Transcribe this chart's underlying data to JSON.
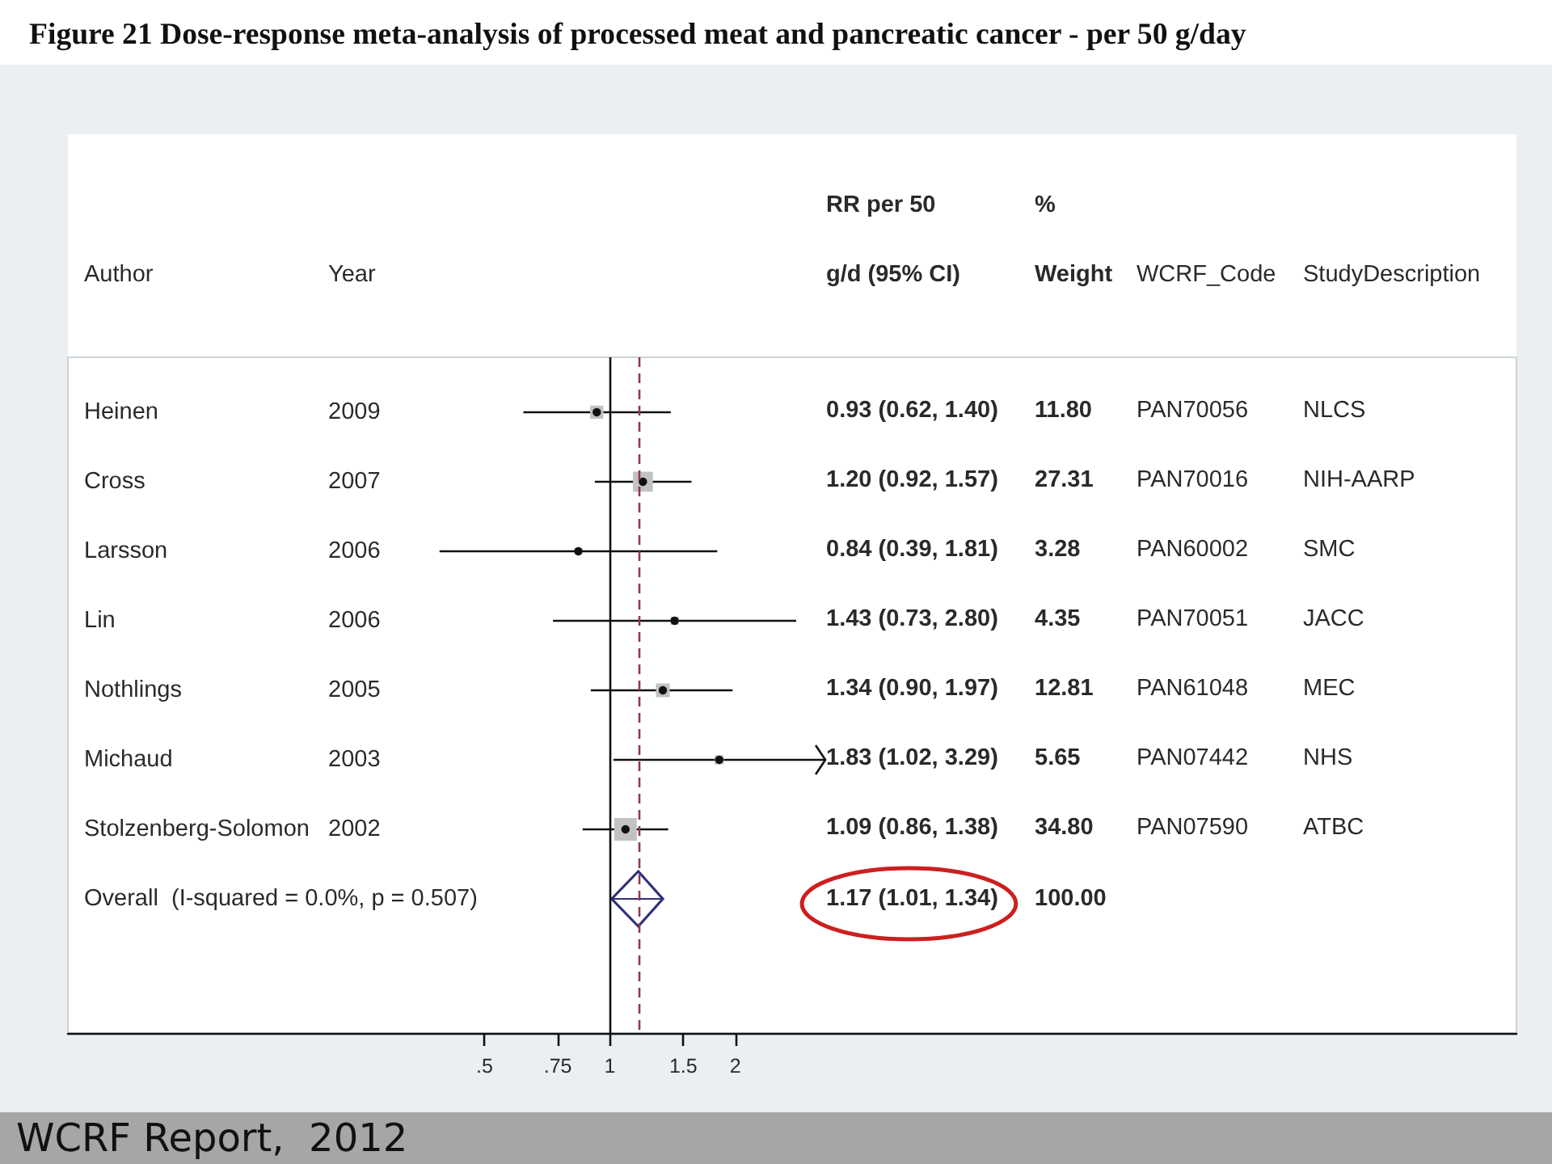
{
  "chart_data": [
    {
      "type": "scatter",
      "orientation": "horizontal",
      "title": "Figure 21 Dose-response meta-analysis of processed meat and pancreatic cancer - per 50 g/day",
      "ylabel": "Author",
      "y2label": "Year",
      "categories": [
        "Heinen",
        "Cross",
        "Larsson",
        "Lin",
        "Nothlings",
        "Michaud",
        "Stolzenberg-Solomon",
        "Overall  (I-squared = 0.0%, p = 0.507)"
      ],
      "y2_categories": [
        "2009",
        "2007",
        "2006",
        "2006",
        "2005",
        "2003",
        "2002",
        null
      ],
      "series": [
        {
          "type": "bubble",
          "marker": "square",
          "color": "#c2c2c2",
          "values": [
            0.93,
            1.2,
            0.84,
            1.43,
            1.34,
            1.83,
            1.09,
            null
          ],
          "errors": [
            [
              0.62,
              1.4
            ],
            [
              0.92,
              1.57
            ],
            [
              0.39,
              1.81
            ],
            [
              0.73,
              2.8
            ],
            [
              0.9,
              1.97
            ],
            [
              1.02,
              3.29
            ],
            [
              0.86,
              1.38
            ],
            null
          ],
          "sizes": [
            0.34,
            0.78,
            0.09,
            0.13,
            0.37,
            0.16,
            1,
            null
          ]
        },
        {
          "marker": "diamond",
          "color": "#2f2f7a",
          "values": [
            null,
            null,
            null,
            null,
            null,
            null,
            null,
            1.17
          ],
          "errors": [
            null,
            null,
            null,
            null,
            null,
            null,
            null,
            [
              1.01,
              1.34
            ]
          ]
        }
      ],
      "xlim": [
        0.05,
        150
      ],
      "xticks": [
        {
          "value": 0.5,
          "label": ".5"
        },
        {
          "value": 0.75,
          "label": ".75"
        },
        1,
        1.5,
        2
      ],
      "log": "x",
      "ref_lines": [
        {
          "axis": "x",
          "value": 1,
          "color": "#111111",
          "line_style": "solid"
        },
        {
          "axis": "x",
          "value": 1.17,
          "color": "#8e3a4e",
          "line_style": "dashed"
        }
      ],
      "annotations": [
        "WCRF Report,  2012"
      ]
    },
    {
      "type": "other",
      "categories": [
        "RR per 50\ng/d (95% CI)",
        "%\nWeight",
        "WCRF_Code",
        "StudyDescription"
      ],
      "cell_labels": [
        [
          "0.93 (0.62, 1.40)",
          "11.80",
          "PAN70056",
          "NLCS"
        ],
        [
          "1.20 (0.92, 1.57)",
          "27.31",
          "PAN70016",
          "NIH-AARP"
        ],
        [
          "0.84 (0.39, 1.81)",
          "3.28",
          "PAN60002",
          "SMC"
        ],
        [
          "1.43 (0.73, 2.80)",
          "4.35",
          "PAN70051",
          "JACC"
        ],
        [
          "1.34 (0.90, 1.97)",
          "12.81",
          "PAN61048",
          "MEC"
        ],
        [
          "1.83 (1.02, 3.29)",
          "5.65",
          "PAN07442",
          "NHS"
        ],
        [
          "1.09 (0.86, 1.38)",
          "34.80",
          "PAN07590",
          "ATBC"
        ],
        [
          "1.17 (1.01, 1.34)",
          "100.00",
          null,
          null
        ]
      ]
    }
  ]
}
